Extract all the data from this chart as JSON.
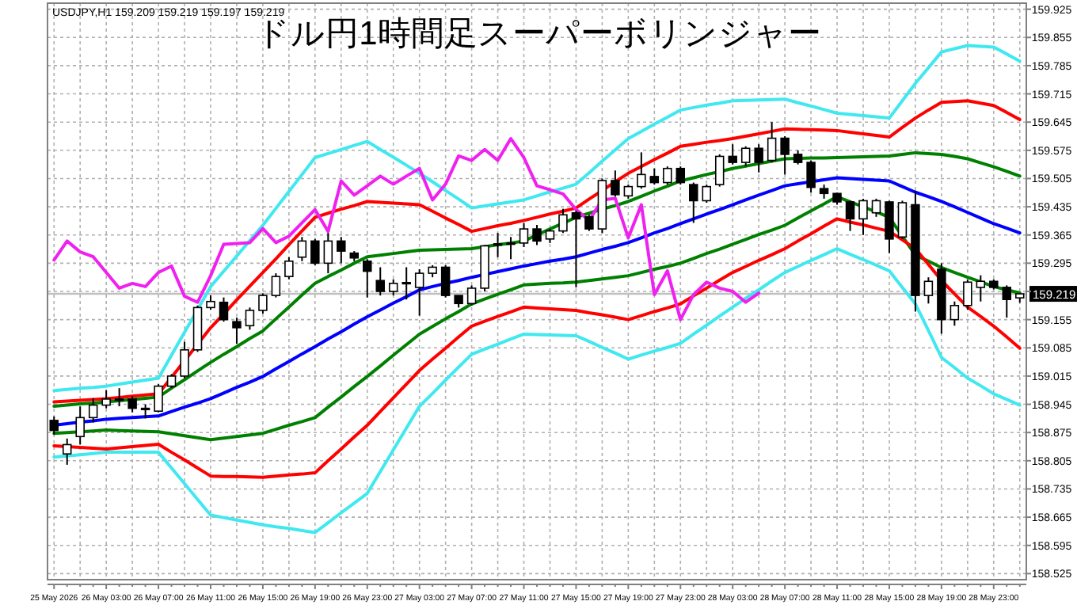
{
  "chart_data": {
    "type": "candlestick",
    "title": "ドル円1時間足スーパーボリンジャー",
    "annotations": [
      "USDJPY,H1  159.209 159.219 159.197 159.219"
    ],
    "categories": [
      "25 May 2026",
      null,
      null,
      null,
      "26 May 03:00",
      null,
      null,
      null,
      "26 May 07:00",
      null,
      null,
      null,
      "26 May 11:00",
      null,
      null,
      null,
      "26 May 15:00",
      null,
      null,
      null,
      "26 May 19:00",
      null,
      null,
      null,
      "26 May 23:00",
      null,
      null,
      null,
      "27 May 03:00",
      null,
      null,
      null,
      "27 May 07:00",
      null,
      null,
      null,
      "27 May 11:00",
      null,
      null,
      null,
      "27 May 15:00",
      null,
      null,
      null,
      "27 May 19:00",
      null,
      null,
      null,
      "27 May 23:00",
      null,
      null,
      null,
      "28 May 03:00",
      null,
      null,
      null,
      "28 May 07:00",
      null,
      null,
      null,
      "28 May 11:00",
      null,
      null,
      null,
      "28 May 15:00",
      null,
      null,
      null,
      "28 May 19:00",
      null,
      null,
      null,
      "28 May 23:00",
      null,
      null
    ],
    "ohlc": [
      [
        158.905,
        158.915,
        158.87,
        158.88
      ],
      [
        158.822,
        158.86,
        158.795,
        158.845
      ],
      [
        158.865,
        158.94,
        158.845,
        158.912
      ],
      [
        158.912,
        158.96,
        158.9,
        158.943
      ],
      [
        158.943,
        158.98,
        158.935,
        158.958
      ],
      [
        158.955,
        158.985,
        158.94,
        158.958
      ],
      [
        158.958,
        158.965,
        158.925,
        158.935
      ],
      [
        158.935,
        158.945,
        158.91,
        158.932
      ],
      [
        158.928,
        158.995,
        158.925,
        158.99
      ],
      [
        158.99,
        159.02,
        158.985,
        159.015
      ],
      [
        159.015,
        159.1,
        159.01,
        159.08
      ],
      [
        159.08,
        159.19,
        159.075,
        159.185
      ],
      [
        159.185,
        159.215,
        159.18,
        159.2
      ],
      [
        159.198,
        159.21,
        159.15,
        159.155
      ],
      [
        159.15,
        159.16,
        159.095,
        159.135
      ],
      [
        159.14,
        159.185,
        159.13,
        159.178
      ],
      [
        159.178,
        159.22,
        159.17,
        159.215
      ],
      [
        159.215,
        159.27,
        159.21,
        159.262
      ],
      [
        159.262,
        159.31,
        159.255,
        159.3
      ],
      [
        159.31,
        159.36,
        159.3,
        159.35
      ],
      [
        159.35,
        159.355,
        159.29,
        159.295
      ],
      [
        159.295,
        159.37,
        159.27,
        159.35
      ],
      [
        159.35,
        159.36,
        159.295,
        159.325
      ],
      [
        159.32,
        159.325,
        159.3,
        159.308
      ],
      [
        159.3,
        159.305,
        159.21,
        159.275
      ],
      [
        159.252,
        159.285,
        159.215,
        159.225
      ],
      [
        159.225,
        159.255,
        159.215,
        159.245
      ],
      [
        159.245,
        159.285,
        159.205,
        159.247
      ],
      [
        159.235,
        159.28,
        159.165,
        159.27
      ],
      [
        159.27,
        159.29,
        159.26,
        159.285
      ],
      [
        159.285,
        159.29,
        159.21,
        159.215
      ],
      [
        159.215,
        159.215,
        159.185,
        159.195
      ],
      [
        159.195,
        159.24,
        159.19,
        159.233
      ],
      [
        159.233,
        159.34,
        159.225,
        159.338
      ],
      [
        159.34,
        159.37,
        159.31,
        159.343
      ],
      [
        159.343,
        159.36,
        159.305,
        159.345
      ],
      [
        159.345,
        159.395,
        159.335,
        159.38
      ],
      [
        159.38,
        159.39,
        159.34,
        159.35
      ],
      [
        159.355,
        159.38,
        159.345,
        159.375
      ],
      [
        159.375,
        159.43,
        159.37,
        159.415
      ],
      [
        159.42,
        159.425,
        159.235,
        159.405
      ],
      [
        159.41,
        159.415,
        159.375,
        159.38
      ],
      [
        159.38,
        159.505,
        159.37,
        159.5
      ],
      [
        159.5,
        159.525,
        159.46,
        159.465
      ],
      [
        159.462,
        159.49,
        159.455,
        159.485
      ],
      [
        159.485,
        159.57,
        159.48,
        159.515
      ],
      [
        159.51,
        159.53,
        159.49,
        159.495
      ],
      [
        159.495,
        159.535,
        159.49,
        159.53
      ],
      [
        159.53,
        159.535,
        159.49,
        159.495
      ],
      [
        159.49,
        159.495,
        159.395,
        159.45
      ],
      [
        159.45,
        159.49,
        159.445,
        159.485
      ],
      [
        159.49,
        159.565,
        159.485,
        159.56
      ],
      [
        159.56,
        159.59,
        159.54,
        159.545
      ],
      [
        159.545,
        159.585,
        159.535,
        159.58
      ],
      [
        159.58,
        159.59,
        159.52,
        159.545
      ],
      [
        159.55,
        159.645,
        159.545,
        159.605
      ],
      [
        159.605,
        159.61,
        159.515,
        159.565
      ],
      [
        159.565,
        159.575,
        159.54,
        159.545
      ],
      [
        159.545,
        159.55,
        159.47,
        159.483
      ],
      [
        159.48,
        159.49,
        159.455,
        159.468
      ],
      [
        159.468,
        159.47,
        159.44,
        159.447
      ],
      [
        159.447,
        159.45,
        159.375,
        159.405
      ],
      [
        159.405,
        159.455,
        159.365,
        159.45
      ],
      [
        159.42,
        159.455,
        159.41,
        159.45
      ],
      [
        159.447,
        159.45,
        159.32,
        159.355
      ],
      [
        159.36,
        159.45,
        159.355,
        159.445
      ],
      [
        159.44,
        159.475,
        159.175,
        159.215
      ],
      [
        159.215,
        159.26,
        159.195,
        159.25
      ],
      [
        159.28,
        159.295,
        159.12,
        159.155
      ],
      [
        159.155,
        159.2,
        159.14,
        159.19
      ],
      [
        159.19,
        159.255,
        159.18,
        159.248
      ],
      [
        159.235,
        159.265,
        159.2,
        159.25
      ],
      [
        159.25,
        159.255,
        159.23,
        159.235
      ],
      [
        159.235,
        159.24,
        159.16,
        159.205
      ],
      [
        159.209,
        159.219,
        159.197,
        159.219
      ]
    ],
    "series": [
      {
        "type": "line",
        "color": "#40e8f0",
        "values": [
          158.979,
          158.982,
          158.985,
          158.987,
          158.99,
          158.995,
          159.0,
          159.005,
          159.01,
          159.067,
          159.124,
          159.18,
          159.237,
          159.275,
          159.313,
          159.351,
          159.389,
          159.431,
          159.473,
          159.515,
          159.557,
          159.567,
          159.577,
          159.587,
          159.597,
          159.577,
          159.558,
          159.538,
          159.518,
          159.497,
          159.475,
          159.454,
          159.432,
          159.437,
          159.442,
          159.447,
          159.452,
          159.462,
          159.472,
          159.481,
          159.491,
          159.519,
          159.548,
          159.576,
          159.604,
          159.622,
          159.64,
          159.657,
          159.675,
          159.681,
          159.687,
          159.692,
          159.698,
          159.699,
          159.7,
          159.701,
          159.702,
          159.693,
          159.685,
          159.676,
          159.667,
          159.664,
          159.661,
          159.658,
          159.655,
          159.698,
          159.741,
          159.78,
          159.819,
          159.827,
          159.835,
          159.833,
          159.831,
          159.814,
          159.796
        ]
      },
      {
        "type": "line",
        "color": "#ff0000",
        "values": [
          158.951,
          158.953,
          158.955,
          158.957,
          158.959,
          158.962,
          158.965,
          158.968,
          158.971,
          159.012,
          159.053,
          159.094,
          159.135,
          159.169,
          159.204,
          159.238,
          159.272,
          159.306,
          159.341,
          159.375,
          159.409,
          159.419,
          159.429,
          159.438,
          159.448,
          159.446,
          159.444,
          159.442,
          159.44,
          159.424,
          159.407,
          159.391,
          159.374,
          159.381,
          159.388,
          159.394,
          159.401,
          159.409,
          159.417,
          159.424,
          159.432,
          159.454,
          159.475,
          159.497,
          159.518,
          159.535,
          159.552,
          159.568,
          159.585,
          159.59,
          159.595,
          159.599,
          159.604,
          159.61,
          159.616,
          159.622,
          159.628,
          159.627,
          159.626,
          159.625,
          159.624,
          159.62,
          159.616,
          159.612,
          159.608,
          159.632,
          159.655,
          159.675,
          159.694,
          159.696,
          159.698,
          159.692,
          159.686,
          159.669,
          159.651
        ]
      },
      {
        "type": "line",
        "color": "#008000",
        "values": [
          158.94,
          158.943,
          158.946,
          158.948,
          158.951,
          158.954,
          158.957,
          158.96,
          158.963,
          158.985,
          159.006,
          159.028,
          159.049,
          159.069,
          159.088,
          159.108,
          159.127,
          159.157,
          159.186,
          159.216,
          159.245,
          159.262,
          159.278,
          159.295,
          159.311,
          159.315,
          159.319,
          159.323,
          159.327,
          159.328,
          159.329,
          159.33,
          159.331,
          159.336,
          159.341,
          159.345,
          159.35,
          159.365,
          159.38,
          159.394,
          159.409,
          159.419,
          159.429,
          159.438,
          159.448,
          159.461,
          159.474,
          159.486,
          159.499,
          159.507,
          159.515,
          159.522,
          159.53,
          159.536,
          159.542,
          159.548,
          159.554,
          159.555,
          159.556,
          159.556,
          159.557,
          159.558,
          159.559,
          159.56,
          159.561,
          159.565,
          159.569,
          159.567,
          159.565,
          159.56,
          159.554,
          159.544,
          159.534,
          159.523,
          159.511
        ]
      },
      {
        "type": "line",
        "color": "#0000ff",
        "values": [
          158.893,
          158.897,
          158.901,
          158.904,
          158.908,
          158.91,
          158.912,
          158.914,
          158.916,
          158.927,
          158.938,
          158.948,
          158.959,
          158.973,
          158.987,
          159.0,
          159.014,
          159.033,
          159.051,
          159.07,
          159.088,
          159.107,
          159.125,
          159.144,
          159.162,
          159.179,
          159.196,
          159.212,
          159.229,
          159.237,
          159.245,
          159.252,
          159.26,
          159.267,
          159.274,
          159.281,
          159.288,
          159.294,
          159.3,
          159.305,
          159.311,
          159.32,
          159.329,
          159.337,
          159.346,
          159.358,
          159.37,
          159.381,
          159.393,
          159.405,
          159.417,
          159.428,
          159.44,
          159.452,
          159.464,
          159.475,
          159.487,
          159.492,
          159.497,
          159.502,
          159.507,
          159.505,
          159.503,
          159.501,
          159.499,
          159.485,
          159.471,
          159.46,
          159.448,
          159.435,
          159.421,
          159.407,
          159.393,
          159.382,
          159.37
        ]
      },
      {
        "type": "line",
        "color": "#008000",
        "values": [
          158.873,
          158.875,
          158.877,
          158.879,
          158.881,
          158.88,
          158.879,
          158.878,
          158.877,
          158.872,
          158.867,
          158.862,
          158.857,
          158.861,
          158.865,
          158.869,
          158.873,
          158.883,
          158.893,
          158.902,
          158.912,
          158.938,
          158.963,
          158.989,
          159.014,
          159.04,
          159.067,
          159.093,
          159.119,
          159.138,
          159.157,
          159.175,
          159.194,
          159.206,
          159.218,
          159.229,
          159.241,
          159.243,
          159.245,
          159.246,
          159.248,
          159.252,
          159.256,
          159.26,
          159.264,
          159.272,
          159.28,
          159.287,
          159.295,
          159.307,
          159.319,
          159.33,
          159.342,
          159.354,
          159.366,
          159.377,
          159.389,
          159.407,
          159.425,
          159.442,
          159.46,
          159.447,
          159.435,
          159.422,
          159.409,
          159.362,
          159.315,
          159.3,
          159.284,
          159.272,
          159.26,
          159.249,
          159.237,
          159.229,
          159.221
        ]
      },
      {
        "type": "line",
        "color": "#ff0000",
        "values": [
          158.842,
          158.84,
          158.838,
          158.836,
          158.834,
          158.837,
          158.84,
          158.843,
          158.846,
          158.826,
          158.807,
          158.787,
          158.767,
          158.766,
          158.766,
          158.765,
          158.764,
          158.767,
          158.77,
          158.772,
          158.775,
          158.805,
          158.834,
          158.864,
          158.893,
          158.927,
          158.961,
          158.995,
          159.029,
          159.057,
          159.084,
          159.112,
          159.139,
          159.151,
          159.163,
          159.174,
          159.186,
          159.184,
          159.182,
          159.18,
          159.178,
          159.172,
          159.167,
          159.161,
          159.155,
          159.165,
          159.175,
          159.184,
          159.194,
          159.214,
          159.233,
          159.253,
          159.272,
          159.287,
          159.302,
          159.316,
          159.331,
          159.35,
          159.368,
          159.387,
          159.405,
          159.397,
          159.39,
          159.382,
          159.374,
          159.353,
          159.331,
          159.292,
          159.252,
          159.219,
          159.186,
          159.163,
          159.139,
          159.112,
          159.084
        ]
      },
      {
        "type": "line",
        "color": "#40e8f0",
        "values": [
          158.814,
          158.817,
          158.82,
          158.823,
          158.826,
          158.826,
          158.826,
          158.826,
          158.826,
          158.787,
          158.748,
          158.709,
          158.67,
          158.664,
          158.658,
          158.652,
          158.646,
          158.641,
          158.637,
          158.632,
          158.627,
          158.651,
          158.676,
          158.7,
          158.724,
          158.778,
          158.832,
          158.886,
          158.94,
          158.972,
          159.005,
          159.037,
          159.069,
          159.082,
          159.094,
          159.107,
          159.119,
          159.118,
          159.117,
          159.116,
          159.115,
          159.101,
          159.086,
          159.072,
          159.057,
          159.067,
          159.077,
          159.086,
          159.096,
          159.119,
          159.141,
          159.164,
          159.186,
          159.208,
          159.229,
          159.251,
          159.272,
          159.287,
          159.302,
          159.316,
          159.331,
          159.317,
          159.304,
          159.29,
          159.276,
          159.235,
          159.194,
          159.128,
          159.061,
          159.036,
          159.01,
          158.991,
          158.971,
          158.957,
          158.943
        ]
      },
      {
        "type": "line",
        "color": "#f020f0",
        "values": [
          159.303,
          159.35,
          159.323,
          159.311,
          159.272,
          159.233,
          159.245,
          159.237,
          159.272,
          159.288,
          159.213,
          159.198,
          159.264,
          159.342,
          159.344,
          159.346,
          159.381,
          159.346,
          159.362,
          159.395,
          159.428,
          159.374,
          159.499,
          159.464,
          159.487,
          159.511,
          159.491,
          159.511,
          159.53,
          159.452,
          159.491,
          159.561,
          159.55,
          159.577,
          159.55,
          159.604,
          159.557,
          159.487,
          159.477,
          159.467,
          159.428,
          159.401,
          159.452,
          159.456,
          159.358,
          159.44,
          159.217,
          159.276,
          159.155,
          159.217,
          159.248,
          159.233,
          159.225,
          159.198,
          159.221,
          null,
          null,
          null,
          null,
          null,
          null,
          null,
          null,
          null,
          null,
          null,
          null,
          null,
          null,
          null,
          null,
          null,
          null,
          null,
          null
        ]
      }
    ],
    "ylim": [
      158.51,
      159.94
    ],
    "yticks": [
      159.925,
      159.855,
      159.785,
      159.715,
      159.645,
      159.575,
      159.505,
      159.435,
      159.365,
      159.295,
      {
        "value": 159.225,
        "label": null
      },
      159.155,
      159.085,
      159.015,
      158.945,
      158.875,
      158.805,
      158.735,
      158.665,
      158.595,
      158.525
    ],
    "grid": true,
    "ref_lines": [
      {
        "axis": "y",
        "value": 159.219,
        "label": "159.219",
        "color": "#c0c0c0"
      }
    ]
  }
}
